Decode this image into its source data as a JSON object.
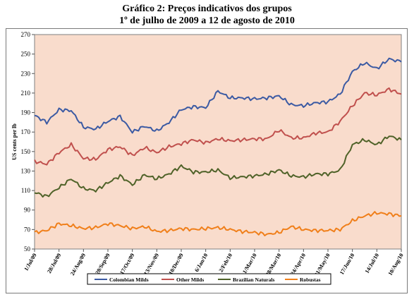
{
  "title": {
    "line1": "Gráfico 2:  Preços indicativos dos grupos",
    "line2": "1º de julho de 2009 a 12 de agosto de 2010"
  },
  "chart_data": {
    "type": "line",
    "title": "Gráfico 2:  Preços indicativos dos grupos",
    "subtitle": "1º de julho de 2009 a 12 de agosto de 2010",
    "xlabel": "",
    "ylabel": "US cents per lb",
    "ylim": [
      50,
      270
    ],
    "yticks": [
      50,
      70,
      90,
      110,
      130,
      150,
      170,
      190,
      210,
      230,
      250,
      270
    ],
    "xticks": [
      "1/Jul/09",
      "28/Jul/09",
      "24/Aug/09",
      "20/Sep/09",
      "17/Oct/09",
      "13/Nov/09",
      "10/Dec/09",
      "6/Jan/10",
      "2/Feb/10",
      "1/Mar/10",
      "28/Mar/10",
      "24/Apr/10",
      "21/May/10",
      "17/Jun/10",
      "14/Jul/10",
      "10/Aug/10"
    ],
    "x": [
      "1/Jul/09",
      "15/Jul/09",
      "28/Jul/09",
      "10/Aug/09",
      "24/Aug/09",
      "7/Sep/09",
      "20/Sep/09",
      "4/Oct/09",
      "17/Oct/09",
      "31/Oct/09",
      "13/Nov/09",
      "27/Nov/09",
      "10/Dec/09",
      "24/Dec/09",
      "6/Jan/10",
      "20/Jan/10",
      "2/Feb/10",
      "15/Feb/10",
      "1/Mar/10",
      "14/Mar/10",
      "28/Mar/10",
      "10/Apr/10",
      "24/Apr/10",
      "7/May/10",
      "21/May/10",
      "3/Jun/10",
      "17/Jun/10",
      "30/Jun/10",
      "14/Jul/10",
      "27/Jul/10",
      "10/Aug/10"
    ],
    "legend_position": "bottom",
    "grid": false,
    "background": "#f9dccc",
    "series": [
      {
        "name": "Colombian Milds",
        "color": "#3b5aa3",
        "values": [
          187,
          180,
          193,
          192,
          175,
          173,
          181,
          186,
          170,
          176,
          171,
          180,
          193,
          196,
          195,
          212,
          205,
          205,
          204,
          205,
          207,
          198,
          197,
          200,
          201,
          209,
          232,
          241,
          235,
          245,
          242
        ]
      },
      {
        "name": "Other Milds",
        "color": "#c0504d",
        "values": [
          140,
          137,
          149,
          157,
          143,
          142,
          152,
          155,
          146,
          154,
          149,
          155,
          158,
          162,
          159,
          163,
          161,
          162,
          163,
          163,
          172,
          164,
          164,
          169,
          170,
          181,
          197,
          210,
          208,
          214,
          209
        ]
      },
      {
        "name": "Brazilian Naturals",
        "color": "#4f6228",
        "values": [
          108,
          104,
          113,
          122,
          112,
          110,
          118,
          125,
          116,
          126,
          122,
          127,
          135,
          129,
          129,
          131,
          123,
          124,
          125,
          127,
          131,
          125,
          124,
          127,
          127,
          131,
          157,
          162,
          157,
          166,
          162
        ]
      },
      {
        "name": "Robustas",
        "color": "#f07f1a",
        "values": [
          67,
          69,
          76,
          74,
          71,
          72,
          76,
          74,
          71,
          73,
          68,
          69,
          71,
          70,
          71,
          72,
          70,
          68,
          67,
          65,
          67,
          73,
          70,
          69,
          69,
          70,
          79,
          84,
          87,
          86,
          84
        ]
      }
    ]
  },
  "legend": {
    "items": [
      {
        "label": "Colombian Milds",
        "color": "#3b5aa3"
      },
      {
        "label": "Other Milds",
        "color": "#c0504d"
      },
      {
        "label": "Brazilian Naturals",
        "color": "#4f6228"
      },
      {
        "label": "Robustas",
        "color": "#f07f1a"
      }
    ]
  }
}
